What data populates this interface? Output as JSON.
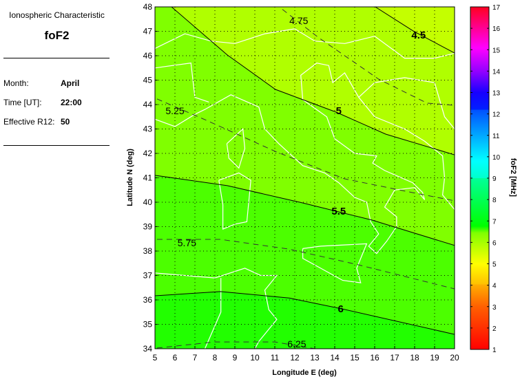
{
  "info": {
    "heading": "Ionospheric Characteristic",
    "parameter": "foF2",
    "month_label": "Month:",
    "month_value": "April",
    "time_label": "Time [UT]:",
    "time_value": "22:00",
    "r12_label": "Effective R12:",
    "r12_value": "50"
  },
  "chart_data": {
    "type": "contour",
    "xlabel": "Longitude E (deg)",
    "ylabel": "Latitude N (deg)",
    "xlim": [
      5,
      20
    ],
    "ylim": [
      34,
      48
    ],
    "xticks": [
      5,
      6,
      7,
      8,
      9,
      10,
      11,
      12,
      13,
      14,
      15,
      16,
      17,
      18,
      19,
      20
    ],
    "yticks": [
      34,
      35,
      36,
      37,
      38,
      39,
      40,
      41,
      42,
      43,
      44,
      45,
      46,
      47,
      48
    ],
    "grid": true,
    "colorbar": {
      "label": "foF2 [MHz]",
      "range": [
        1,
        17
      ],
      "ticks": [
        1,
        2,
        3,
        4,
        5,
        6,
        7,
        8,
        9,
        10,
        11,
        12,
        13,
        14,
        15,
        16,
        17
      ]
    },
    "contours": [
      {
        "level": 4.5,
        "label": "4.5",
        "style": "solid",
        "label_at": [
          18.2,
          46.7
        ],
        "points": [
          [
            16.03,
            48
          ],
          [
            17.93,
            47.01
          ],
          [
            20,
            46.11
          ]
        ]
      },
      {
        "level": 4.75,
        "label": "4.75",
        "style": "dashed",
        "label_at": [
          12.2,
          47.3
        ],
        "points": [
          [
            11.38,
            47.9
          ],
          [
            13.21,
            46.73
          ],
          [
            16.2,
            45.04
          ],
          [
            18.62,
            44.06
          ],
          [
            20,
            43.97
          ]
        ]
      },
      {
        "level": 5,
        "label": "5",
        "style": "solid",
        "label_at": [
          14.2,
          43.6
        ],
        "points": [
          [
            5.83,
            48
          ],
          [
            8.62,
            46.03
          ],
          [
            11.03,
            44.62
          ],
          [
            14.07,
            43.69
          ],
          [
            16.55,
            42.79
          ],
          [
            20,
            41.94
          ]
        ]
      },
      {
        "level": 5.25,
        "label": "5.25",
        "style": "dashed",
        "label_at": [
          6.0,
          43.6
        ],
        "points": [
          [
            5.1,
            44.23
          ],
          [
            7.59,
            43.35
          ],
          [
            11.03,
            42.08
          ],
          [
            14.48,
            40.96
          ],
          [
            17.93,
            40.39
          ],
          [
            20,
            40.06
          ]
        ]
      },
      {
        "level": 5.5,
        "label": "5.5",
        "style": "solid",
        "label_at": [
          14.2,
          39.5
        ],
        "points": [
          [
            5,
            41.1
          ],
          [
            8.62,
            40.68
          ],
          [
            12.41,
            39.97
          ],
          [
            15.86,
            39.27
          ],
          [
            20,
            38.23
          ]
        ]
      },
      {
        "level": 5.75,
        "label": "5.75",
        "style": "dashed",
        "label_at": [
          6.6,
          38.2
        ],
        "points": [
          [
            5.1,
            38.48
          ],
          [
            8.28,
            38.48
          ],
          [
            11.72,
            38.08
          ],
          [
            15.17,
            37.44
          ],
          [
            20,
            36.45
          ]
        ]
      },
      {
        "level": 6,
        "label": "6",
        "style": "solid",
        "label_at": [
          14.3,
          35.5
        ],
        "points": [
          [
            5,
            36.17
          ],
          [
            8.28,
            36.34
          ],
          [
            11.72,
            36.08
          ],
          [
            14.48,
            35.61
          ],
          [
            20,
            34.59
          ]
        ]
      },
      {
        "level": 6.25,
        "label": "6.25",
        "style": "dashed",
        "label_at": [
          12.1,
          34.05
        ],
        "points": [
          [
            5.1,
            34.03
          ],
          [
            8,
            34.28
          ],
          [
            11,
            34.28
          ],
          [
            13,
            34
          ]
        ]
      }
    ],
    "colors": {
      "above_4.5": "#c4ff00",
      "4.5_5": "#b0ff00",
      "5_5.5": "#80ff00",
      "5.5_6": "#4cff00",
      "below_6": "#22ff00",
      "coastline": "#ffffff"
    }
  }
}
